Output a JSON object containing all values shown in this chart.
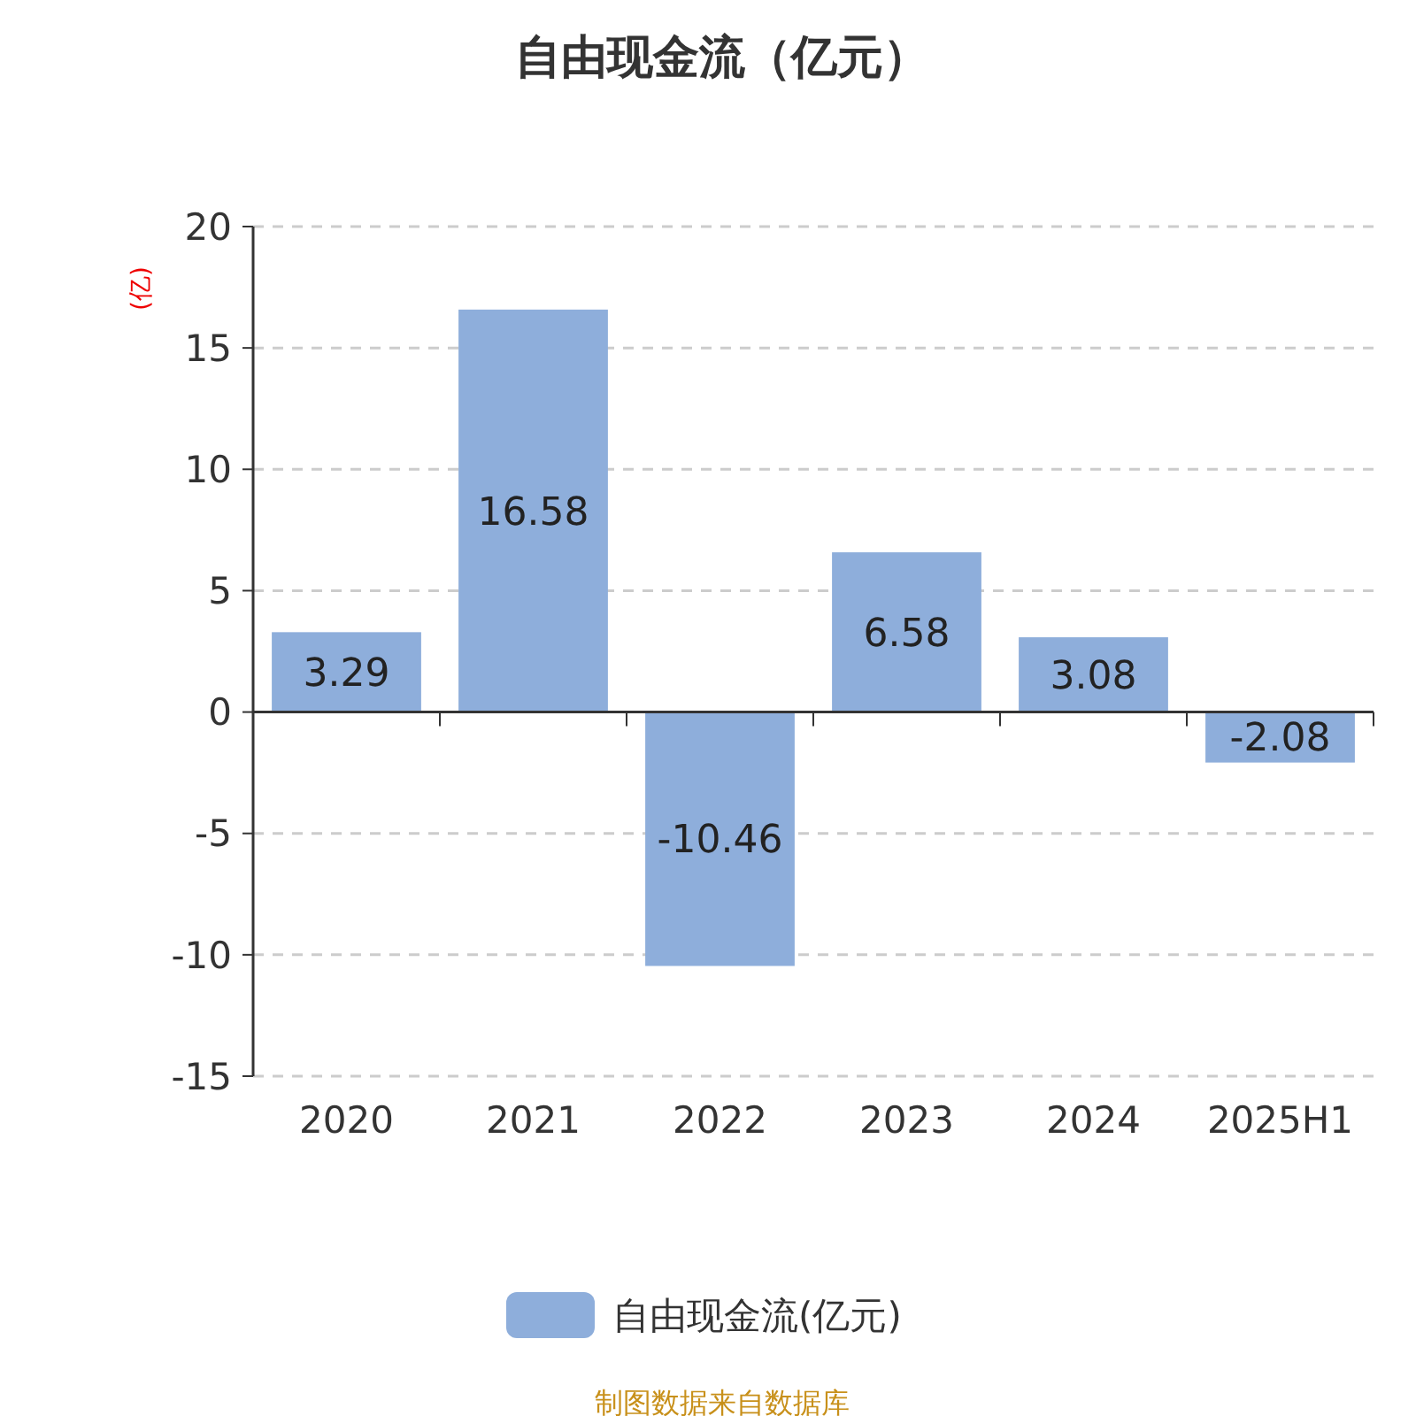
{
  "chart_data": {
    "type": "bar",
    "title": "自由现金流（亿元）",
    "ylabel": "(亿)",
    "categories": [
      "2020",
      "2021",
      "2022",
      "2023",
      "2024",
      "2025H1"
    ],
    "series": [
      {
        "name": "自由现金流(亿元)",
        "color": "#8eaedb",
        "values": [
          3.29,
          16.58,
          -10.46,
          6.58,
          3.08,
          -2.08
        ]
      }
    ],
    "ylim": [
      -15,
      20
    ],
    "yticks": [
      -15,
      -10,
      -5,
      0,
      5,
      10,
      15,
      20
    ],
    "grid": "y",
    "legend": "bottom",
    "data_labels": true,
    "annotations": [
      "制图数据来自数据库"
    ]
  }
}
